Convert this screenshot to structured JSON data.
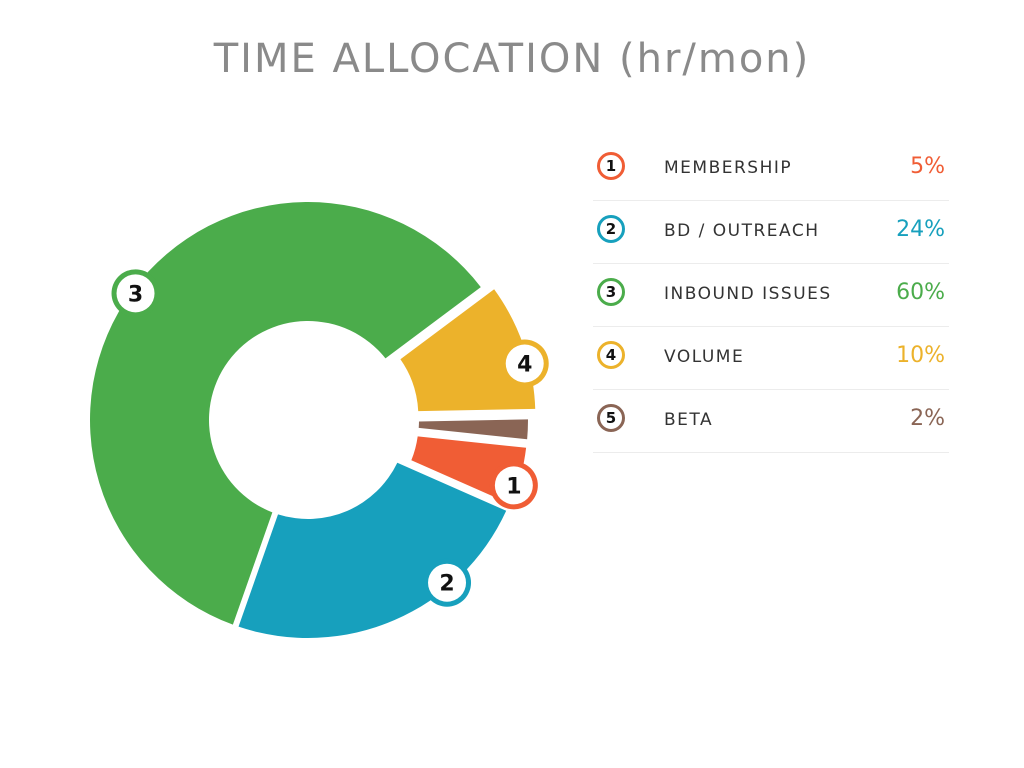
{
  "chart_data": {
    "type": "pie",
    "title": "TIME ALLOCATION (hr/mon)",
    "categories": [
      "MEMBERSHIP",
      "BD / OUTREACH",
      "INBOUND ISSUES",
      "VOLUME",
      "BETA"
    ],
    "values": [
      5,
      24,
      60,
      10,
      2
    ],
    "value_labels": [
      "5%",
      "24%",
      "60%",
      "10%",
      "2%"
    ],
    "markers": [
      "1",
      "2",
      "3",
      "4",
      "5"
    ],
    "colors": [
      "#f05d35",
      "#17a0bd",
      "#4bac4b",
      "#ecb22b",
      "#8a6555"
    ],
    "donut": true,
    "legend": "right"
  }
}
